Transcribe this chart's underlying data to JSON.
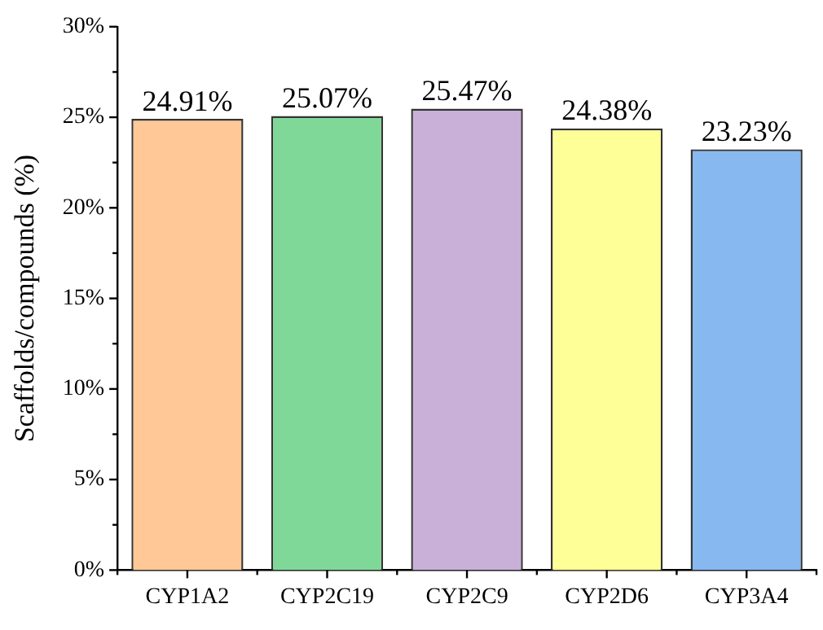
{
  "chart_data": {
    "type": "bar",
    "ylabel": "Scaffolds/compounds (%)",
    "categories": [
      "CYP1A2",
      "CYP2C19",
      "CYP2C9",
      "CYP2D6",
      "CYP3A4"
    ],
    "values": [
      24.91,
      25.07,
      25.47,
      24.38,
      23.23
    ],
    "colors": [
      "#ffc896",
      "#80d898",
      "#c8b0d8",
      "#ffff98",
      "#88b8f0"
    ],
    "value_labels": [
      "24.91%",
      "25.07%",
      "25.47%",
      "24.38%",
      "23.23%"
    ],
    "ylim": [
      0,
      30
    ],
    "yticks": [
      {
        "value": 0,
        "label": "0%"
      },
      {
        "value": 2.5,
        "label": null
      },
      {
        "value": 5,
        "label": "5%"
      },
      {
        "value": 7.5,
        "label": null
      },
      {
        "value": 10,
        "label": "10%"
      },
      {
        "value": 12.5,
        "label": null
      },
      {
        "value": 15,
        "label": "15%"
      },
      {
        "value": 17.5,
        "label": null
      },
      {
        "value": 20,
        "label": "20%"
      },
      {
        "value": 22.5,
        "label": null
      },
      {
        "value": 25,
        "label": "25%"
      },
      {
        "value": 27.5,
        "label": null
      },
      {
        "value": 30,
        "label": "30%"
      }
    ],
    "grid": false,
    "legend": false
  }
}
